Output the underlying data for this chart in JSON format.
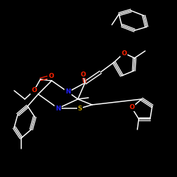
{
  "background_color": "#000000",
  "figsize": [
    2.5,
    2.5
  ],
  "dpi": 100,
  "atom_colors": {
    "O": "#ff2200",
    "N": "#2222ff",
    "S": "#bb9900",
    "C": "#ffffff"
  }
}
